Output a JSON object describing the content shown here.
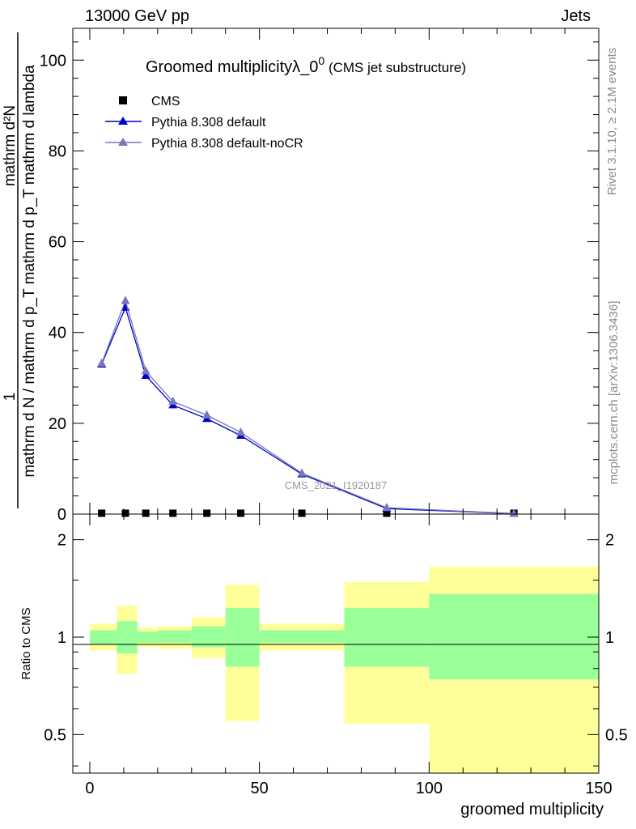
{
  "header": {
    "energy_label": "13000 GeV pp",
    "category_label": "Jets"
  },
  "side_text": {
    "rivet": "Rivet 3.1.10, ≥ 2.1M events",
    "mcplots": "mcplots.cern.ch [arXiv:1306.3436]"
  },
  "chart_data": [
    {
      "type": "line",
      "title": "Groomed multiplicityλ_0",
      "title_superscript": "0",
      "subtitle": "(CMS jet substructure)",
      "ylabel_numerator": "1",
      "ylabel_numerator_right": "mathrm d²N",
      "ylabel_denominator": "mathrm d N / mathrm d p_T mathrm d p_T mathrm d lambda",
      "watermark": "CMS_2021_I1920187",
      "xlim": [
        -5,
        150
      ],
      "ylim": [
        0,
        107
      ],
      "yticks": [
        0,
        20,
        40,
        60,
        80,
        100
      ],
      "series": [
        {
          "name": "CMS",
          "marker": "square",
          "color": "#000000",
          "x": [
            3.5,
            10.5,
            16.5,
            24.5,
            34.5,
            44.5,
            62.5,
            87.5,
            125
          ],
          "values": [
            0.1,
            0.1,
            0.1,
            0.1,
            0.1,
            0.1,
            0.1,
            0.1,
            0.1
          ]
        },
        {
          "name": "Pythia 8.308 default",
          "marker": "triangle",
          "color": "#0000cc",
          "x": [
            3.5,
            10.5,
            16.5,
            24.5,
            34.5,
            44.5,
            62.5,
            87.5,
            125
          ],
          "values": [
            33,
            45.5,
            30.5,
            24,
            21,
            17.3,
            8.8,
            1.2,
            0.1
          ]
        },
        {
          "name": "Pythia 8.308 default-noCR",
          "marker": "triangle",
          "color": "#7777bb",
          "x": [
            3.5,
            10.5,
            16.5,
            24.5,
            34.5,
            44.5,
            62.5,
            87.5,
            125
          ],
          "values": [
            33.2,
            47,
            31.5,
            24.8,
            21.8,
            18,
            9,
            1.4,
            0.12
          ]
        }
      ]
    },
    {
      "type": "area",
      "ylabel": "Ratio to CMS",
      "xlabel": "groomed multiplicity",
      "xlim": [
        -5,
        150
      ],
      "ylim": [
        0.38,
        2.4
      ],
      "log_y": true,
      "xticks": [
        0,
        50,
        100,
        150
      ],
      "yticks": [
        0.5,
        1,
        2
      ],
      "reference_line": 1,
      "colors": {
        "inner_band": "#99ff99",
        "outer_band": "#ffff99"
      },
      "bins": [
        {
          "lo": 0,
          "hi": 8,
          "inner": [
            0.95,
            1.05
          ],
          "outer": [
            0.91,
            1.1
          ]
        },
        {
          "lo": 8,
          "hi": 14,
          "inner": [
            0.89,
            1.12
          ],
          "outer": [
            0.77,
            1.25
          ]
        },
        {
          "lo": 14,
          "hi": 20,
          "inner": [
            0.96,
            1.04
          ],
          "outer": [
            0.93,
            1.07
          ]
        },
        {
          "lo": 20,
          "hi": 30,
          "inner": [
            0.96,
            1.05
          ],
          "outer": [
            0.92,
            1.08
          ]
        },
        {
          "lo": 30,
          "hi": 40,
          "inner": [
            0.93,
            1.08
          ],
          "outer": [
            0.86,
            1.15
          ]
        },
        {
          "lo": 40,
          "hi": 50,
          "inner": [
            0.81,
            1.23
          ],
          "outer": [
            0.55,
            1.45
          ]
        },
        {
          "lo": 50,
          "hi": 75,
          "inner": [
            0.96,
            1.05
          ],
          "outer": [
            0.91,
            1.1
          ]
        },
        {
          "lo": 75,
          "hi": 100,
          "inner": [
            0.81,
            1.23
          ],
          "outer": [
            0.54,
            1.48
          ]
        },
        {
          "lo": 100,
          "hi": 150,
          "inner": [
            0.74,
            1.36
          ],
          "outer": [
            0.38,
            1.65
          ]
        }
      ]
    }
  ]
}
